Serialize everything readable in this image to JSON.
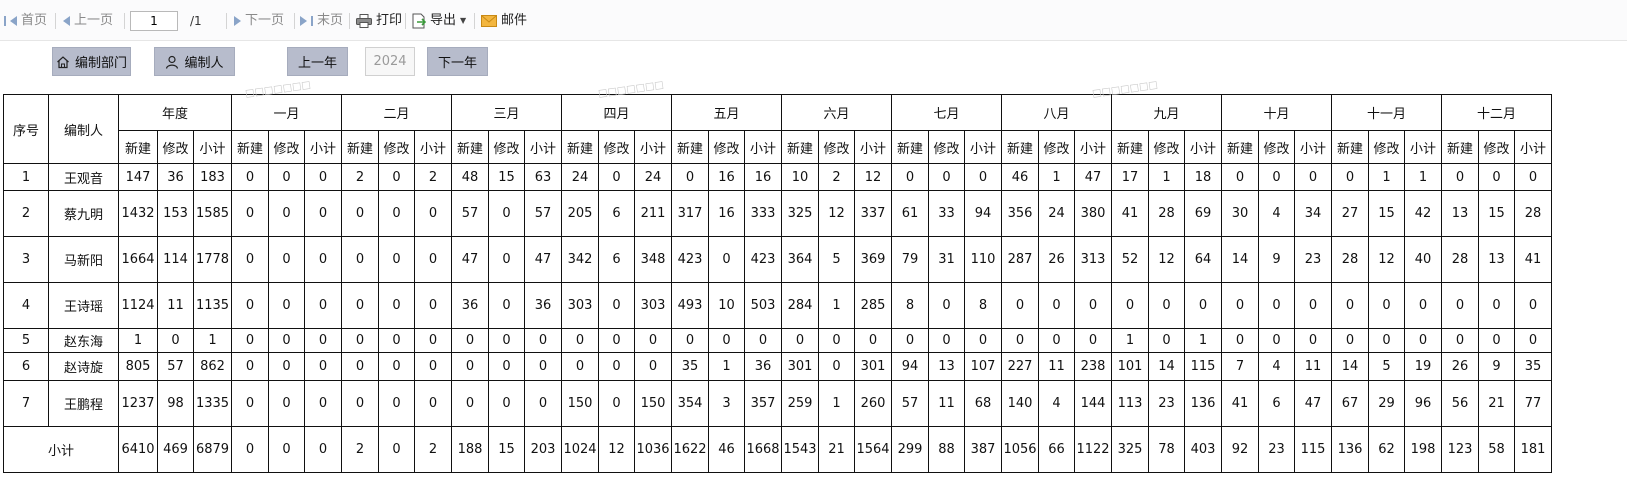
{
  "toolbar": {
    "first": "首页",
    "prev": "上一页",
    "page": "1",
    "total": "/1",
    "next": "下一页",
    "last": "末页",
    "print": "打印",
    "export": "导出",
    "mail": "邮件"
  },
  "filters": {
    "dept_button": "编制部门",
    "person_button": "编制人",
    "prev_year": "上一年",
    "year": "2024",
    "next_year": "下一年"
  },
  "table": {
    "col_seq": "序号",
    "col_person": "编制人",
    "groups": [
      "年度",
      "一月",
      "二月",
      "三月",
      "四月",
      "五月",
      "六月",
      "七月",
      "八月",
      "九月",
      "十月",
      "十一月",
      "十二月"
    ],
    "sub": [
      "新建",
      "修改",
      "小计"
    ],
    "rows": [
      {
        "seq": "1",
        "name": "王观音",
        "vals": [
          "147",
          "36",
          "183",
          "0",
          "0",
          "0",
          "2",
          "0",
          "2",
          "48",
          "15",
          "63",
          "24",
          "0",
          "24",
          "0",
          "16",
          "16",
          "10",
          "2",
          "12",
          "0",
          "0",
          "0",
          "46",
          "1",
          "47",
          "17",
          "1",
          "18",
          "0",
          "0",
          "0",
          "0",
          "1",
          "1",
          "0",
          "0",
          "0"
        ]
      },
      {
        "seq": "2",
        "name": "蔡九明",
        "vals": [
          "1432",
          "153",
          "1585",
          "0",
          "0",
          "0",
          "0",
          "0",
          "0",
          "57",
          "0",
          "57",
          "205",
          "6",
          "211",
          "317",
          "16",
          "333",
          "325",
          "12",
          "337",
          "61",
          "33",
          "94",
          "356",
          "24",
          "380",
          "41",
          "28",
          "69",
          "30",
          "4",
          "34",
          "27",
          "15",
          "42",
          "13",
          "15",
          "28"
        ]
      },
      {
        "seq": "3",
        "name": "马新阳",
        "vals": [
          "1664",
          "114",
          "1778",
          "0",
          "0",
          "0",
          "0",
          "0",
          "0",
          "47",
          "0",
          "47",
          "342",
          "6",
          "348",
          "423",
          "0",
          "423",
          "364",
          "5",
          "369",
          "79",
          "31",
          "110",
          "287",
          "26",
          "313",
          "52",
          "12",
          "64",
          "14",
          "9",
          "23",
          "28",
          "12",
          "40",
          "28",
          "13",
          "41"
        ]
      },
      {
        "seq": "4",
        "name": "王诗瑶",
        "vals": [
          "1124",
          "11",
          "1135",
          "0",
          "0",
          "0",
          "0",
          "0",
          "0",
          "36",
          "0",
          "36",
          "303",
          "0",
          "303",
          "493",
          "10",
          "503",
          "284",
          "1",
          "285",
          "8",
          "0",
          "8",
          "0",
          "0",
          "0",
          "0",
          "0",
          "0",
          "0",
          "0",
          "0",
          "0",
          "0",
          "0",
          "0",
          "0",
          "0"
        ]
      },
      {
        "seq": "5",
        "name": "赵东海",
        "vals": [
          "1",
          "0",
          "1",
          "0",
          "0",
          "0",
          "0",
          "0",
          "0",
          "0",
          "0",
          "0",
          "0",
          "0",
          "0",
          "0",
          "0",
          "0",
          "0",
          "0",
          "0",
          "0",
          "0",
          "0",
          "0",
          "0",
          "0",
          "1",
          "0",
          "1",
          "0",
          "0",
          "0",
          "0",
          "0",
          "0",
          "0",
          "0",
          "0"
        ]
      },
      {
        "seq": "6",
        "name": "赵诗旋",
        "vals": [
          "805",
          "57",
          "862",
          "0",
          "0",
          "0",
          "0",
          "0",
          "0",
          "0",
          "0",
          "0",
          "0",
          "0",
          "0",
          "35",
          "1",
          "36",
          "301",
          "0",
          "301",
          "94",
          "13",
          "107",
          "227",
          "11",
          "238",
          "101",
          "14",
          "115",
          "7",
          "4",
          "11",
          "14",
          "5",
          "19",
          "26",
          "9",
          "35"
        ]
      },
      {
        "seq": "7",
        "name": "王鹏程",
        "vals": [
          "1237",
          "98",
          "1335",
          "0",
          "0",
          "0",
          "0",
          "0",
          "0",
          "0",
          "0",
          "0",
          "150",
          "0",
          "150",
          "354",
          "3",
          "357",
          "259",
          "1",
          "260",
          "57",
          "11",
          "68",
          "140",
          "4",
          "144",
          "113",
          "23",
          "136",
          "41",
          "6",
          "47",
          "67",
          "29",
          "96",
          "56",
          "21",
          "77"
        ]
      }
    ],
    "total_label": "小计",
    "total_vals": [
      "6410",
      "469",
      "6879",
      "0",
      "0",
      "0",
      "2",
      "0",
      "2",
      "188",
      "15",
      "203",
      "1024",
      "12",
      "1036",
      "1622",
      "46",
      "1668",
      "1543",
      "21",
      "1564",
      "299",
      "88",
      "387",
      "1056",
      "66",
      "1122",
      "325",
      "78",
      "403",
      "92",
      "23",
      "115",
      "136",
      "62",
      "198",
      "123",
      "58",
      "181"
    ]
  },
  "colors": {
    "button_bg": "#b7bccc",
    "nav_icon": "#8aa4c8"
  }
}
